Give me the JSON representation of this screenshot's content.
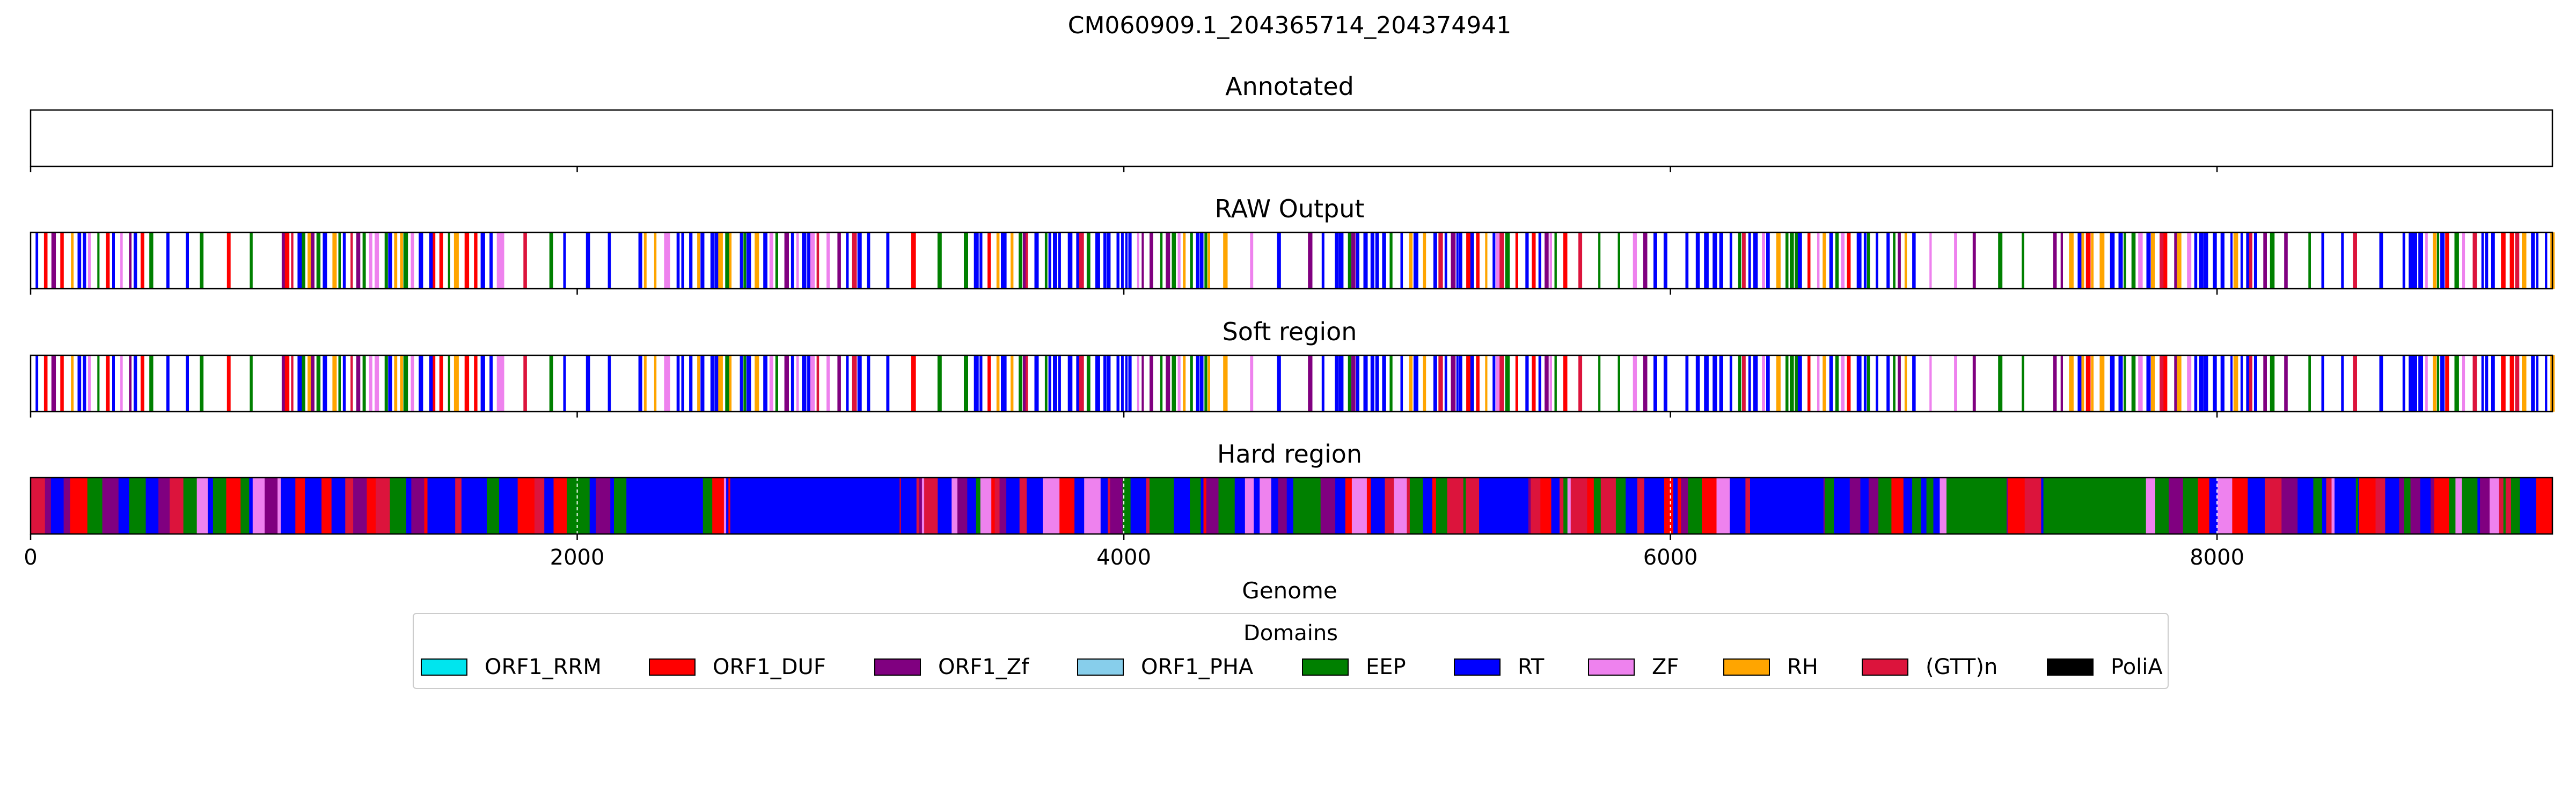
{
  "chart_data": {
    "type": "bar",
    "title": "CM060909.1_204365714_204374941",
    "xlabel": "Genome",
    "xlim": [
      0,
      9227
    ],
    "xticks": [
      "0",
      "2000",
      "4000",
      "6000",
      "8000"
    ],
    "xtick_values": [
      0,
      2000,
      4000,
      6000,
      8000
    ],
    "panels": [
      {
        "title": "Annotated",
        "mode": "empty",
        "show_tick_labels": false
      },
      {
        "title": "RAW Output",
        "mode": "sparse",
        "show_tick_labels": false
      },
      {
        "title": "Soft region",
        "mode": "sparse",
        "show_tick_labels": false
      },
      {
        "title": "Hard region",
        "mode": "dense",
        "show_tick_labels": true
      }
    ],
    "legend": {
      "title": "Domains",
      "placement": "bottom-center",
      "entries": [
        {
          "name": "ORF1_RRM",
          "color": "#00e5ee"
        },
        {
          "name": "ORF1_DUF",
          "color": "#ff0000"
        },
        {
          "name": "ORF1_Zf",
          "color": "#800080"
        },
        {
          "name": "ORF1_PHA",
          "color": "#87ceeb"
        },
        {
          "name": "EEP",
          "color": "#008000"
        },
        {
          "name": "RT",
          "color": "#0000ff"
        },
        {
          "name": "ZF",
          "color": "#ee82ee"
        },
        {
          "name": "RH",
          "color": "#ffa500"
        },
        {
          "name": "(GTT)n",
          "color": "#dc143c"
        },
        {
          "name": "PoliA",
          "color": "#000000"
        }
      ]
    }
  }
}
